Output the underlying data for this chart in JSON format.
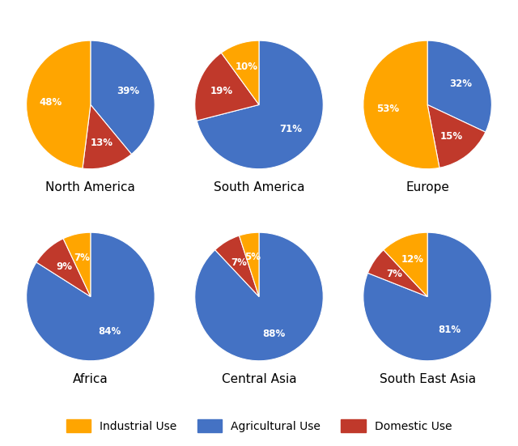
{
  "regions": [
    "North America",
    "South America",
    "Europe",
    "Africa",
    "Central Asia",
    "South East Asia"
  ],
  "data": [
    {
      "Agricultural Use": 39,
      "Domestic Use": 13,
      "Industrial Use": 48
    },
    {
      "Agricultural Use": 71,
      "Domestic Use": 19,
      "Industrial Use": 10
    },
    {
      "Agricultural Use": 32,
      "Domestic Use": 15,
      "Industrial Use": 53
    },
    {
      "Agricultural Use": 84,
      "Domestic Use": 9,
      "Industrial Use": 7
    },
    {
      "Agricultural Use": 88,
      "Domestic Use": 7,
      "Industrial Use": 5
    },
    {
      "Agricultural Use": 81,
      "Domestic Use": 7,
      "Industrial Use": 12
    }
  ],
  "colors": {
    "Industrial Use": "#FFA500",
    "Agricultural Use": "#4472C4",
    "Domestic Use": "#C0392B"
  },
  "label_color": "white",
  "label_fontsize": 8.5,
  "title_fontsize": 11,
  "legend_fontsize": 10,
  "background_color": "#FFFFFF",
  "order": [
    "Agricultural Use",
    "Domestic Use",
    "Industrial Use"
  ],
  "start_angles": [
    90,
    90,
    90,
    90,
    90,
    90
  ]
}
